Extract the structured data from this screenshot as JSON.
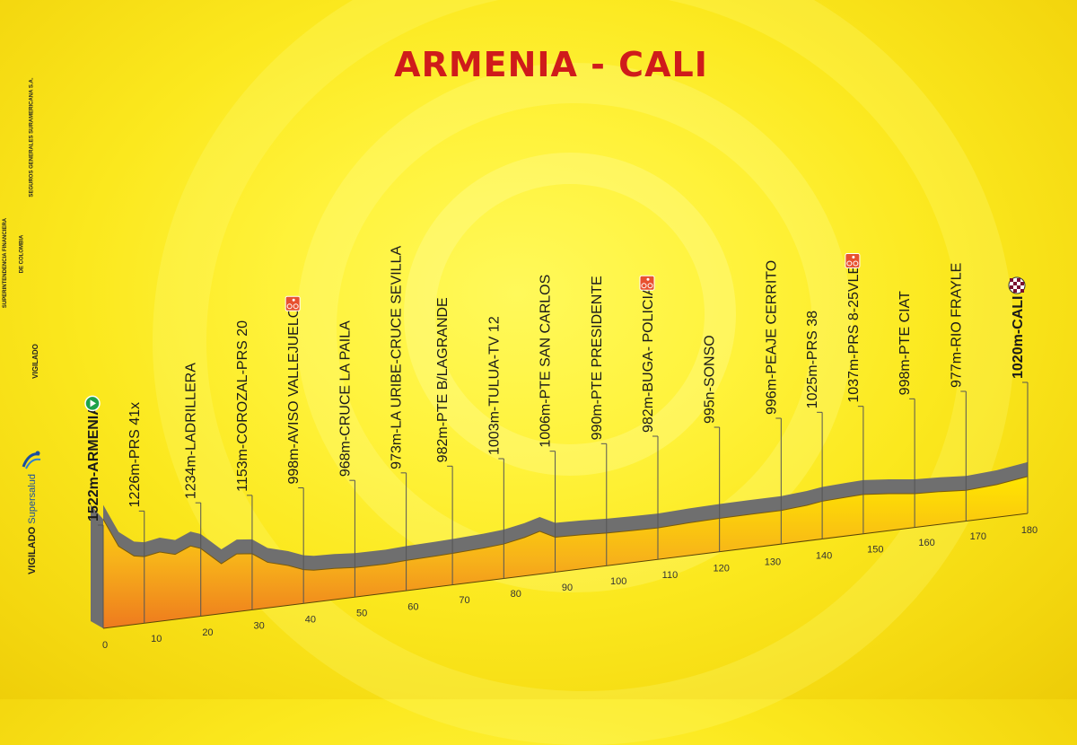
{
  "title": "ARMENIA - CALI",
  "sidebar": {
    "entity_1": "SUPERINTENDENCIA FINANCIERA",
    "entity_1b": "DE COLOMBIA",
    "entity_2": "SEGUROS GENERALES SURAMERICANA S.A.",
    "vigilado": "VIGILADO",
    "vigilado_2": "VIGILADO",
    "supersalud": "Supersalud"
  },
  "colors": {
    "title": "#cf1b1b",
    "terrain_top": "#ffe600",
    "terrain_bottom": "#f07f1e",
    "road_band": "#6f6f6f",
    "start_icon": "#1fa24a",
    "sprint_icon": "#e8512f"
  },
  "chart_data": {
    "type": "area",
    "title": "ARMENIA - CALI",
    "xlabel": "",
    "ylabel": "",
    "xlim": [
      0,
      180
    ],
    "x_ticks": [
      "0",
      "10",
      "20",
      "30",
      "40",
      "50",
      "60",
      "70",
      "80",
      "90",
      "100",
      "110",
      "120",
      "130",
      "140",
      "150",
      "160",
      "170",
      "180"
    ],
    "profile": [
      {
        "km": 0,
        "alt": 1522
      },
      {
        "km": 3,
        "alt": 1320
      },
      {
        "km": 6,
        "alt": 1240
      },
      {
        "km": 8,
        "alt": 1226
      },
      {
        "km": 11,
        "alt": 1245
      },
      {
        "km": 14,
        "alt": 1215
      },
      {
        "km": 17,
        "alt": 1260
      },
      {
        "km": 19,
        "alt": 1234
      },
      {
        "km": 23,
        "alt": 1110
      },
      {
        "km": 26,
        "alt": 1165
      },
      {
        "km": 29,
        "alt": 1153
      },
      {
        "km": 32,
        "alt": 1080
      },
      {
        "km": 36,
        "alt": 1040
      },
      {
        "km": 39,
        "alt": 998
      },
      {
        "km": 41,
        "alt": 985
      },
      {
        "km": 45,
        "alt": 980
      },
      {
        "km": 49,
        "alt": 968
      },
      {
        "km": 55,
        "alt": 966
      },
      {
        "km": 59,
        "alt": 973
      },
      {
        "km": 65,
        "alt": 978
      },
      {
        "km": 68,
        "alt": 982
      },
      {
        "km": 74,
        "alt": 992
      },
      {
        "km": 78,
        "alt": 1003
      },
      {
        "km": 82,
        "alt": 1030
      },
      {
        "km": 85,
        "alt": 1060
      },
      {
        "km": 88,
        "alt": 1006
      },
      {
        "km": 93,
        "alt": 1000
      },
      {
        "km": 98,
        "alt": 990
      },
      {
        "km": 103,
        "alt": 985
      },
      {
        "km": 108,
        "alt": 982
      },
      {
        "km": 114,
        "alt": 990
      },
      {
        "km": 120,
        "alt": 995
      },
      {
        "km": 126,
        "alt": 996
      },
      {
        "km": 132,
        "alt": 996
      },
      {
        "km": 137,
        "alt": 1010
      },
      {
        "km": 140,
        "alt": 1025
      },
      {
        "km": 145,
        "alt": 1033
      },
      {
        "km": 148,
        "alt": 1037
      },
      {
        "km": 153,
        "alt": 1020
      },
      {
        "km": 158,
        "alt": 998
      },
      {
        "km": 163,
        "alt": 990
      },
      {
        "km": 168,
        "alt": 977
      },
      {
        "km": 174,
        "alt": 990
      },
      {
        "km": 180,
        "alt": 1020
      }
    ],
    "waypoints": [
      {
        "km": 0,
        "label": "1522m-ARMENIA",
        "bold": true,
        "icon": "start"
      },
      {
        "km": 8,
        "label": "1226m-PRS 41x"
      },
      {
        "km": 19,
        "label": "1234m-LADRILLERA"
      },
      {
        "km": 29,
        "label": "1153m-COROZAL-PRS 20"
      },
      {
        "km": 39,
        "label": "998m-AVISO VALLEJUELOS",
        "icon": "sprint"
      },
      {
        "km": 49,
        "label": "968m-CRUCE LA PAILA"
      },
      {
        "km": 59,
        "label": "973m-LA URIBE-CRUCE SEVILLA"
      },
      {
        "km": 68,
        "label": "982m-PTE B/LAGRANDE"
      },
      {
        "km": 78,
        "label": "1003m-TULUA-TV 12"
      },
      {
        "km": 88,
        "label": "1006m-PTE SAN CARLOS"
      },
      {
        "km": 98,
        "label": "990m-PTE PRESIDENTE"
      },
      {
        "km": 108,
        "label": "982m-BUGA- POLICIA",
        "icon": "sprint"
      },
      {
        "km": 120,
        "label": "995n-SONSO"
      },
      {
        "km": 132,
        "label": "996m-PEAJE CERRITO"
      },
      {
        "km": 140,
        "label": "1025m-PRS 38"
      },
      {
        "km": 148,
        "label": "1037m-PRS 8-25VLB",
        "icon": "sprint"
      },
      {
        "km": 158,
        "label": "998m-PTE CIAT"
      },
      {
        "km": 168,
        "label": "977m-RIO FRAYLE"
      },
      {
        "km": 180,
        "label": "1020m-CALI",
        "bold": true,
        "icon": "finish"
      }
    ]
  }
}
